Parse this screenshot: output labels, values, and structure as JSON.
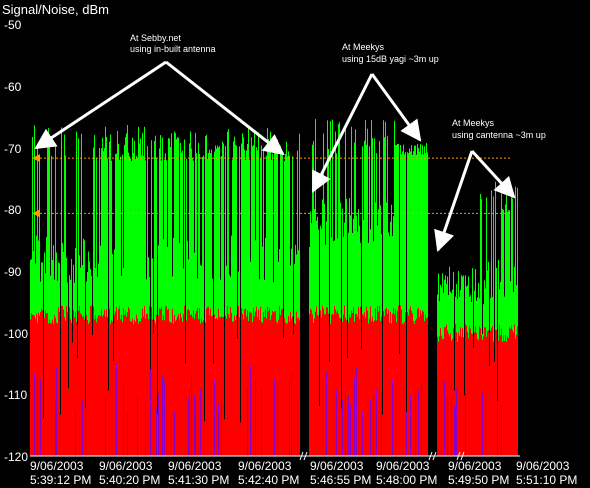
{
  "chart_data": {
    "type": "area",
    "title": "Signal/Noise, dBm",
    "ylim": [
      -120,
      -50
    ],
    "yticks": [
      -50,
      -60,
      -70,
      -80,
      -90,
      -100,
      -110,
      -120
    ],
    "xtick_labels": [
      {
        "date": "9/06/2003",
        "time": "5:39:12 PM"
      },
      {
        "date": "9/06/2003",
        "time": "5:40:20 PM"
      },
      {
        "date": "9/06/2003",
        "time": "5:41:30 PM"
      },
      {
        "date": "9/06/2003",
        "time": "5:42:40 PM"
      },
      {
        "date": "9/06/2003",
        "time": "5:46:55 PM"
      },
      {
        "date": "9/06/2003",
        "time": "5:48:00 PM"
      },
      {
        "date": "9/06/2003",
        "time": "5:49:50 PM"
      },
      {
        "date": "9/06/2003",
        "time": "5:51:10 PM"
      }
    ],
    "series": [
      {
        "role": "signal",
        "color": "#00ff00",
        "segments": [
          {
            "start": "5:39:12 PM",
            "end": "5:42:40 PM",
            "typical_dbm": -88,
            "peak_dbm": -57,
            "max_plateau_dbm": -72
          },
          {
            "start": "5:46:55 PM",
            "end": "5:48:00 PM",
            "typical_dbm": -82,
            "peak_dbm": -71,
            "max_plateau_dbm": -71
          },
          {
            "start": "5:49:50 PM",
            "end": "5:51:10 PM",
            "typical_dbm": -92,
            "peak_dbm": -80,
            "max_plateau_dbm": -81
          }
        ]
      },
      {
        "role": "noise",
        "color": "#ff0000",
        "typical_dbm": -97,
        "segments": [
          {
            "start": "5:39:12 PM",
            "end": "5:42:40 PM",
            "level_dbm": -97
          },
          {
            "start": "5:46:55 PM",
            "end": "5:48:00 PM",
            "level_dbm": -97
          },
          {
            "start": "5:49:50 PM",
            "end": "5:51:10 PM",
            "level_dbm": -100
          }
        ]
      }
    ],
    "reference_lines": [
      {
        "value": -71.5,
        "color": "#ff9900"
      },
      {
        "value": -80.5,
        "color": "#ff9900"
      }
    ],
    "annotations": [
      {
        "lines": [
          "At Sebby.net",
          "using in-built antenna"
        ]
      },
      {
        "lines": [
          "At Meekys",
          "using 15dB yagi ~3m up"
        ]
      },
      {
        "lines": [
          "At Meekys",
          "using cantenna ~3m up"
        ]
      }
    ]
  }
}
